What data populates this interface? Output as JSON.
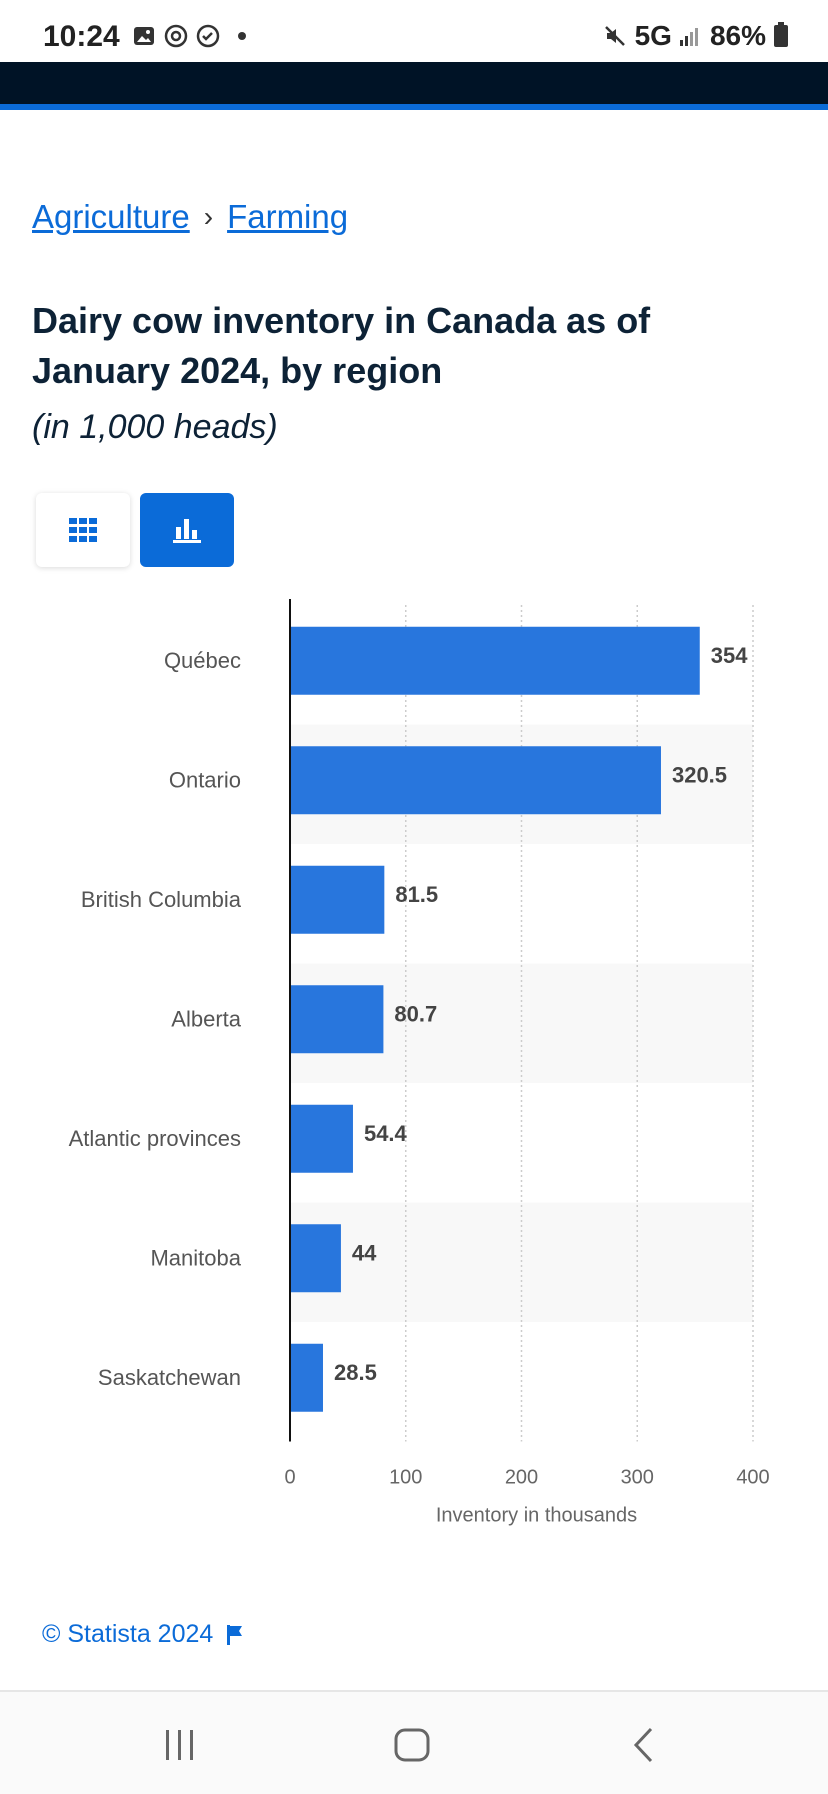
{
  "status_bar": {
    "time": "10:24",
    "network": "5G",
    "battery": "86%"
  },
  "breadcrumb": {
    "items": [
      "Agriculture",
      "Farming"
    ],
    "separator": "›"
  },
  "title": "Dairy cow inventory in Canada as of January 2024, by region",
  "subtitle": "(in 1,000 heads)",
  "view_toggle": {
    "table_icon": "grid-icon",
    "chart_icon": "bar-chart-icon",
    "active": "chart"
  },
  "colors": {
    "accent": "#0b6bd8",
    "bar": "#2876dd",
    "header_band": "#001326"
  },
  "chart_data": {
    "type": "bar",
    "orientation": "horizontal",
    "categories": [
      "Québec",
      "Ontario",
      "British Columbia",
      "Alberta",
      "Atlantic provinces",
      "Manitoba",
      "Saskatchewan"
    ],
    "values": [
      354,
      320.5,
      81.5,
      80.7,
      54.4,
      44,
      28.5
    ],
    "value_labels": [
      "354",
      "320.5",
      "81.5",
      "80.7",
      "54.4",
      "44",
      "28.5"
    ],
    "xlabel": "Inventory in thousands",
    "xlim": [
      0,
      400
    ],
    "xticks": [
      "0",
      "100",
      "200",
      "300",
      "400"
    ],
    "grid": "vertical dotted",
    "legend": "none"
  },
  "footer": {
    "credit": "© Statista 2024"
  }
}
